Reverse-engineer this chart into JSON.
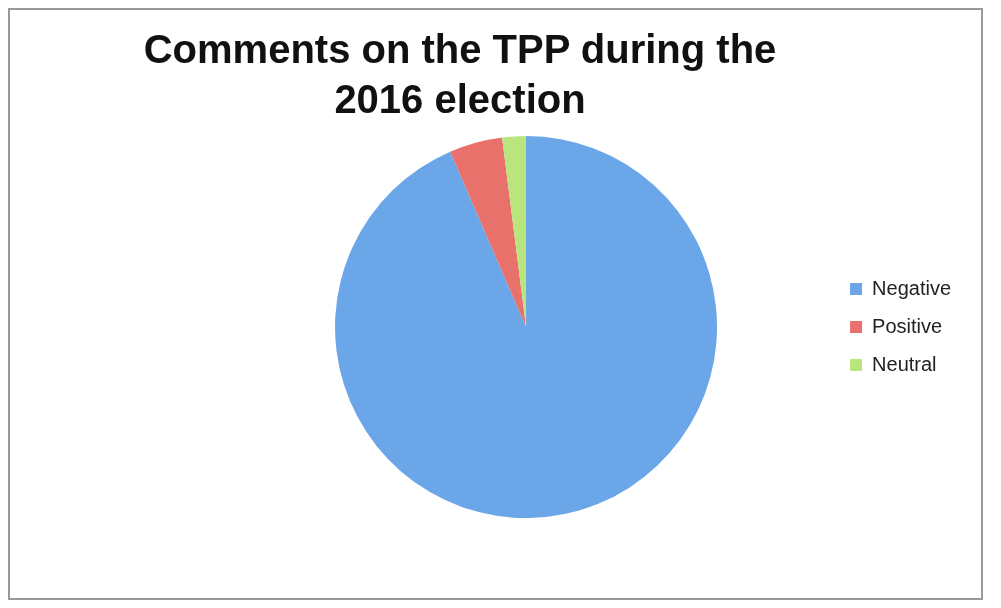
{
  "chart_data": {
    "type": "pie",
    "title": "Comments on the TPP during the 2016 election",
    "categories": [
      "Negative",
      "Positive",
      "Neutral"
    ],
    "values": [
      93.5,
      4.5,
      2
    ],
    "colors": [
      "#6aa6e8",
      "#e8716c",
      "#b9e57e"
    ],
    "legend": "right"
  }
}
